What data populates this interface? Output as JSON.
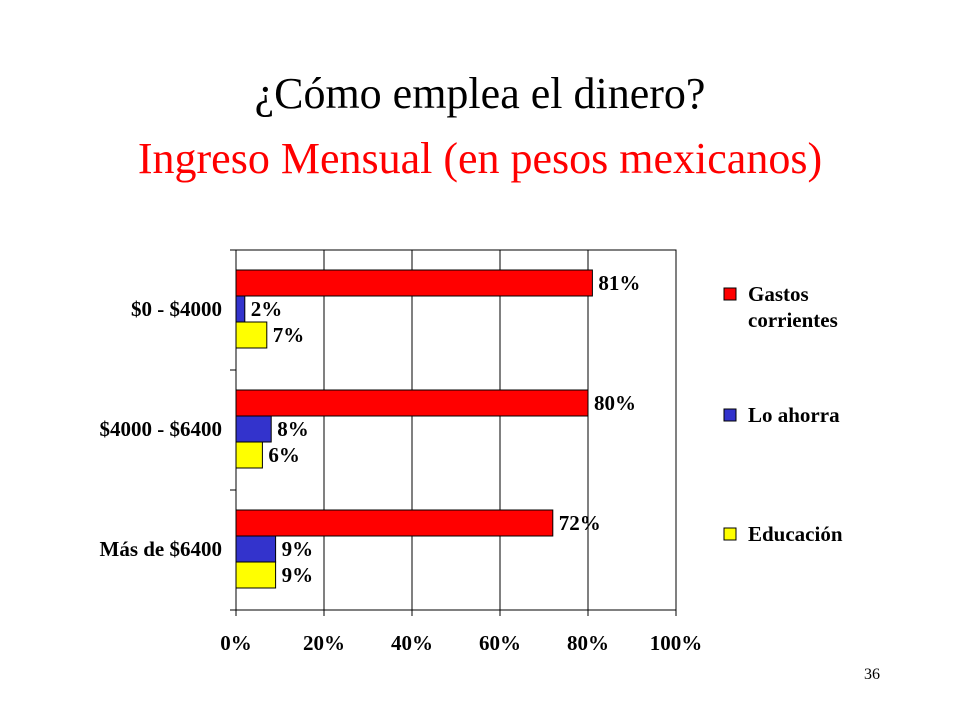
{
  "slide": {
    "title": "¿Cómo emplea el dinero?",
    "subtitle": "Ingreso Mensual (en pesos mexicanos)",
    "subtitle_color": "#ff0000",
    "page_number": "36"
  },
  "chart_data": {
    "type": "bar",
    "orientation": "horizontal",
    "title": "",
    "xlabel": "",
    "ylabel": "",
    "categories": [
      "$0 - $4000",
      "$4000 - $6400",
      "Más de $6400"
    ],
    "series": [
      {
        "name": "Gastos corrientes",
        "color": "#ff0000",
        "values": [
          81,
          80,
          72
        ],
        "labels": [
          "81%",
          "80%",
          "72%"
        ]
      },
      {
        "name": "Lo ahorra",
        "color": "#3333cc",
        "values": [
          2,
          8,
          9
        ],
        "labels": [
          "2%",
          "8%",
          "9%"
        ]
      },
      {
        "name": "Educación",
        "color": "#ffff00",
        "values": [
          7,
          6,
          9
        ],
        "labels": [
          "7%",
          "6%",
          "9%"
        ]
      }
    ],
    "xlim": [
      0,
      100
    ],
    "x_ticks": [
      "0%",
      "20%",
      "40%",
      "60%",
      "80%",
      "100%"
    ],
    "grid": "vertical",
    "legend_position": "right",
    "legend_lines": [
      [
        "Gastos",
        "corrientes"
      ],
      [
        "Lo ahorra"
      ],
      [
        "Educación"
      ]
    ]
  }
}
